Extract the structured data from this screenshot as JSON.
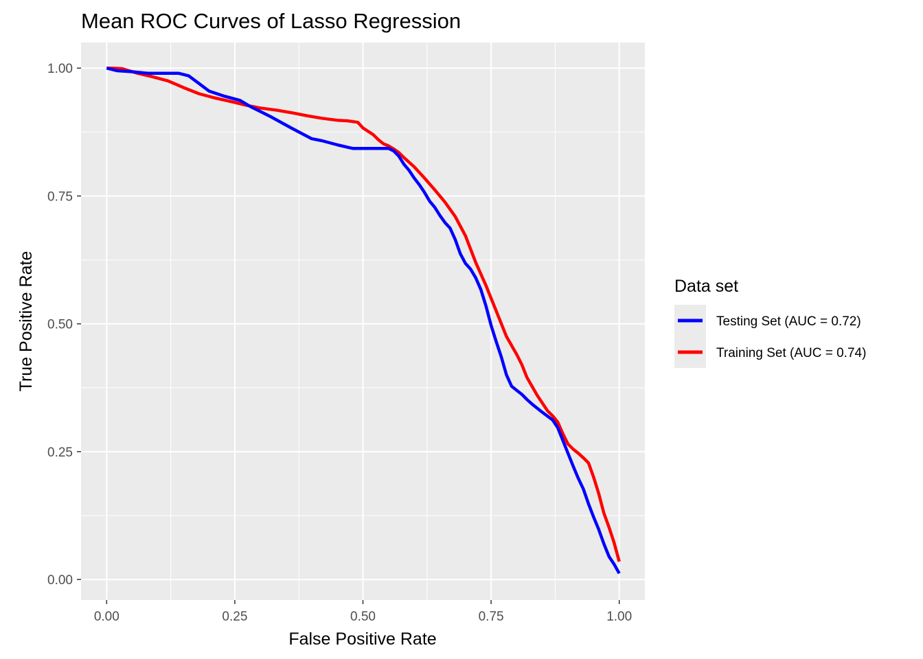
{
  "chart_data": {
    "type": "line",
    "title": "Mean ROC Curves of Lasso Regression",
    "xlabel": "False Positive Rate",
    "ylabel": "True Positive Rate",
    "xlim": [
      -0.05,
      1.05
    ],
    "ylim": [
      -0.04,
      1.05
    ],
    "x_ticks": [
      0,
      0.25,
      0.5,
      0.75,
      1
    ],
    "x_tick_labels": [
      "0.00",
      "0.25",
      "0.50",
      "0.75",
      "1.00"
    ],
    "y_ticks": [
      0,
      0.25,
      0.5,
      0.75,
      1
    ],
    "y_tick_labels": [
      "0.00",
      "0.25",
      "0.50",
      "0.75",
      "1.00"
    ],
    "grid": true,
    "background_color": "#EBEBEB",
    "legend": {
      "title": "Data set",
      "position": "right"
    },
    "series": [
      {
        "name": "Testing Set (AUC = 0.72)",
        "color": "#0000FF",
        "x": [
          0.0,
          0.02,
          0.05,
          0.08,
          0.12,
          0.14,
          0.16,
          0.18,
          0.2,
          0.23,
          0.26,
          0.28,
          0.32,
          0.36,
          0.4,
          0.42,
          0.45,
          0.48,
          0.5,
          0.53,
          0.55,
          0.56,
          0.57,
          0.58,
          0.59,
          0.6,
          0.61,
          0.62,
          0.63,
          0.64,
          0.65,
          0.66,
          0.67,
          0.68,
          0.69,
          0.7,
          0.71,
          0.72,
          0.73,
          0.74,
          0.75,
          0.76,
          0.77,
          0.78,
          0.79,
          0.8,
          0.81,
          0.82,
          0.83,
          0.85,
          0.87,
          0.88,
          0.89,
          0.9,
          0.91,
          0.92,
          0.93,
          0.94,
          0.95,
          0.96,
          0.97,
          0.98,
          0.99,
          1.0
        ],
        "y": [
          1.0,
          0.995,
          0.993,
          0.99,
          0.99,
          0.99,
          0.985,
          0.97,
          0.955,
          0.945,
          0.937,
          0.925,
          0.905,
          0.883,
          0.862,
          0.858,
          0.85,
          0.843,
          0.843,
          0.843,
          0.843,
          0.838,
          0.828,
          0.812,
          0.8,
          0.785,
          0.772,
          0.757,
          0.74,
          0.728,
          0.712,
          0.698,
          0.687,
          0.665,
          0.637,
          0.618,
          0.607,
          0.59,
          0.567,
          0.535,
          0.497,
          0.465,
          0.435,
          0.4,
          0.378,
          0.37,
          0.362,
          0.352,
          0.343,
          0.327,
          0.312,
          0.297,
          0.272,
          0.247,
          0.222,
          0.198,
          0.177,
          0.148,
          0.122,
          0.098,
          0.07,
          0.045,
          0.03,
          0.012
        ]
      },
      {
        "name": "Training Set (AUC = 0.74)",
        "color": "#FF0000",
        "x": [
          0.0,
          0.01,
          0.03,
          0.06,
          0.09,
          0.12,
          0.15,
          0.18,
          0.21,
          0.25,
          0.27,
          0.3,
          0.33,
          0.36,
          0.39,
          0.42,
          0.45,
          0.47,
          0.49,
          0.5,
          0.52,
          0.53,
          0.54,
          0.55,
          0.56,
          0.57,
          0.58,
          0.6,
          0.62,
          0.64,
          0.66,
          0.68,
          0.7,
          0.72,
          0.74,
          0.76,
          0.78,
          0.8,
          0.81,
          0.82,
          0.84,
          0.86,
          0.87,
          0.88,
          0.89,
          0.9,
          0.91,
          0.92,
          0.93,
          0.94,
          0.95,
          0.96,
          0.97,
          0.98,
          0.99,
          1.0
        ],
        "y": [
          1.0,
          1.0,
          0.999,
          0.99,
          0.983,
          0.975,
          0.962,
          0.95,
          0.942,
          0.933,
          0.928,
          0.922,
          0.918,
          0.913,
          0.907,
          0.902,
          0.898,
          0.897,
          0.894,
          0.883,
          0.87,
          0.86,
          0.852,
          0.848,
          0.842,
          0.835,
          0.825,
          0.807,
          0.785,
          0.762,
          0.738,
          0.71,
          0.672,
          0.62,
          0.575,
          0.525,
          0.475,
          0.44,
          0.42,
          0.395,
          0.36,
          0.33,
          0.32,
          0.308,
          0.285,
          0.265,
          0.255,
          0.247,
          0.238,
          0.228,
          0.2,
          0.168,
          0.13,
          0.102,
          0.072,
          0.035
        ]
      }
    ]
  }
}
